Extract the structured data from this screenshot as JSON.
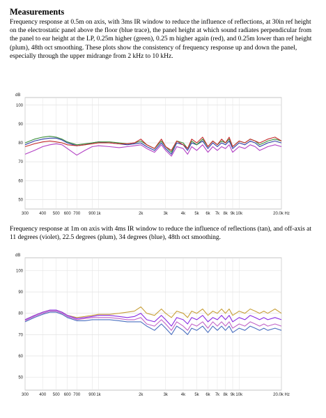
{
  "heading": "Measurements",
  "paragraph1": "Frequency response at 0.5m on axis, with 3ms IR window to reduce the influence of reflections, at 30in ref height on the electrostatic panel above the floor (blue trace), the panel height at which sound radiates perpendicular from the panel to ear height at the LP, 0.25m higher (green), 0.25 m higher again (red), and 0.25m lower than ref height (plum), 48th oct smoothing. These plots show the consistency of frequency response up and down the panel, especially through the upper midrange from 2 kHz to 10 kHz.",
  "paragraph2": "Frequency response at 1m on axis with 4ms IR window to reduce the influence of reflections (tan), and off-axis at 11 degrees (violet), 22.5 degrees (plum), 34 degrees (blue), 48th oct smoothing.",
  "chart_data": [
    {
      "type": "line",
      "ylabel": "dB",
      "yticks": [
        50,
        60,
        70,
        80,
        90,
        100
      ],
      "ylim": [
        45,
        104
      ],
      "xlim": [
        300,
        20000
      ],
      "xscale": "log",
      "xticks": [
        300,
        400,
        500,
        600,
        700,
        900,
        1000,
        2000,
        3000,
        4000,
        5000,
        6000,
        7000,
        8000,
        9000,
        10000,
        20000
      ],
      "xtick_labels": [
        "300",
        "400",
        "500",
        "600",
        "700",
        "900",
        "1k",
        "2k",
        "3k",
        "4k",
        "5k",
        "6k",
        "7k",
        "8k",
        "9k",
        "10k",
        "20.0k Hz"
      ],
      "grid": true,
      "colors": [
        "#2f3fa8",
        "#3c8f3c",
        "#c42b2b",
        "#b23fc4"
      ],
      "series": [
        {
          "x": [
            300,
            350,
            400,
            450,
            500,
            550,
            600,
            700,
            800,
            900,
            1000,
            1200,
            1400,
            1600,
            1800,
            2000,
            2200,
            2500,
            2800,
            3000,
            3300,
            3600,
            4000,
            4300,
            4600,
            5000,
            5500,
            6000,
            6500,
            7000,
            7500,
            8000,
            8500,
            9000,
            10000,
            11000,
            12000,
            13000,
            14000,
            15000,
            16000,
            18000,
            20000
          ],
          "y": [
            79,
            81,
            82,
            82.5,
            82.5,
            81.5,
            80,
            78.5,
            79,
            80,
            80.5,
            80,
            79.5,
            79,
            79.5,
            80,
            78,
            76,
            80,
            77,
            74,
            80,
            79,
            76,
            80,
            79,
            81,
            77,
            80,
            78,
            80,
            79,
            81,
            77,
            80,
            79,
            81,
            80,
            78,
            79,
            80,
            81,
            80
          ]
        },
        {
          "x": [
            300,
            350,
            400,
            450,
            500,
            550,
            600,
            700,
            800,
            900,
            1000,
            1200,
            1400,
            1600,
            1800,
            2000,
            2200,
            2500,
            2800,
            3000,
            3300,
            3600,
            4000,
            4300,
            4600,
            5000,
            5500,
            6000,
            6500,
            7000,
            7500,
            8000,
            8500,
            9000,
            10000,
            11000,
            12000,
            13000,
            14000,
            15000,
            16000,
            18000,
            20000
          ],
          "y": [
            80,
            82,
            83,
            83.5,
            83,
            82,
            80.5,
            79,
            79.5,
            80,
            80.5,
            80.5,
            80,
            79.5,
            80,
            81,
            79,
            77,
            81,
            78,
            75,
            81,
            80,
            77,
            81,
            79,
            82,
            78,
            81,
            79,
            81,
            80,
            82,
            78,
            81,
            80,
            82,
            81,
            79,
            80,
            81,
            82,
            81
          ]
        },
        {
          "x": [
            300,
            350,
            400,
            450,
            500,
            550,
            600,
            700,
            800,
            900,
            1000,
            1200,
            1400,
            1600,
            1800,
            2000,
            2200,
            2500,
            2800,
            3000,
            3300,
            3600,
            4000,
            4300,
            4600,
            5000,
            5500,
            6000,
            6500,
            7000,
            7500,
            8000,
            8500,
            9000,
            10000,
            11000,
            12000,
            13000,
            14000,
            15000,
            16000,
            18000,
            20000
          ],
          "y": [
            78,
            79.5,
            80.5,
            81,
            80.5,
            80,
            79,
            78.5,
            79,
            79.5,
            80,
            80,
            79.5,
            79.5,
            80,
            82,
            79,
            77,
            82,
            78,
            76,
            81,
            79,
            77,
            82,
            80,
            83,
            78,
            81,
            79,
            82,
            80,
            83,
            78,
            81,
            80,
            82,
            81,
            80,
            81,
            82,
            83,
            81
          ]
        },
        {
          "x": [
            300,
            350,
            400,
            450,
            500,
            550,
            600,
            700,
            800,
            900,
            1000,
            1200,
            1400,
            1600,
            1800,
            2000,
            2200,
            2500,
            2800,
            3000,
            3300,
            3600,
            4000,
            4300,
            4600,
            5000,
            5500,
            6000,
            6500,
            7000,
            7500,
            8000,
            8500,
            9000,
            10000,
            11000,
            12000,
            13000,
            14000,
            15000,
            16000,
            18000,
            20000
          ],
          "y": [
            74,
            76,
            78,
            79,
            79.5,
            79,
            77,
            73.5,
            76,
            78,
            78.5,
            78,
            77.5,
            78,
            78.5,
            79,
            77,
            75,
            79,
            76,
            73,
            78,
            77,
            74,
            78,
            76,
            79,
            75,
            78,
            76,
            78,
            77,
            79,
            75,
            78,
            77,
            79,
            78,
            76,
            77,
            78,
            79,
            78
          ]
        }
      ]
    },
    {
      "type": "line",
      "ylabel": "dB",
      "yticks": [
        50,
        60,
        70,
        80,
        90,
        100
      ],
      "ylim": [
        44,
        106
      ],
      "xlim": [
        300,
        20000
      ],
      "xscale": "log",
      "xticks": [
        300,
        400,
        500,
        600,
        700,
        900,
        1000,
        2000,
        3000,
        4000,
        5000,
        6000,
        7000,
        8000,
        9000,
        10000,
        20000
      ],
      "xtick_labels": [
        "300",
        "400",
        "500",
        "600",
        "700",
        "900",
        "1k",
        "2k",
        "3k",
        "4k",
        "5k",
        "6k",
        "7k",
        "8k",
        "9k",
        "10k",
        "20.0k Hz"
      ],
      "grid": true,
      "colors": [
        "#c8a03a",
        "#8a2be2",
        "#c064c8",
        "#4a6fc0"
      ],
      "series": [
        {
          "x": [
            300,
            350,
            400,
            450,
            500,
            550,
            600,
            700,
            800,
            900,
            1000,
            1200,
            1400,
            1600,
            1800,
            2000,
            2200,
            2500,
            2800,
            3000,
            3300,
            3600,
            4000,
            4300,
            4600,
            5000,
            5500,
            6000,
            6500,
            7000,
            7500,
            8000,
            8500,
            9000,
            10000,
            11000,
            12000,
            13000,
            14000,
            15000,
            16000,
            18000,
            20000
          ],
          "y": [
            77,
            79,
            80.5,
            81.5,
            81.5,
            80.5,
            79,
            78,
            78.5,
            79,
            79.5,
            79.5,
            80,
            80.5,
            81,
            83,
            80,
            79,
            82,
            80,
            78,
            81,
            80,
            78,
            81,
            80,
            82,
            79,
            81,
            80,
            82,
            80,
            82,
            79,
            81,
            80,
            82,
            81,
            80,
            81,
            80,
            82,
            80
          ]
        },
        {
          "x": [
            300,
            350,
            400,
            450,
            500,
            550,
            600,
            700,
            800,
            900,
            1000,
            1200,
            1400,
            1600,
            1800,
            2000,
            2200,
            2500,
            2800,
            3000,
            3300,
            3600,
            4000,
            4300,
            4600,
            5000,
            5500,
            6000,
            6500,
            7000,
            7500,
            8000,
            8500,
            9000,
            10000,
            11000,
            12000,
            13000,
            14000,
            15000,
            16000,
            18000,
            20000
          ],
          "y": [
            77,
            79,
            80.5,
            81.5,
            81.5,
            80.5,
            79,
            77.5,
            78,
            78.5,
            79,
            79,
            78.5,
            78,
            78.5,
            80,
            77,
            76,
            79,
            77,
            74,
            78,
            77,
            75,
            78,
            77,
            79,
            76,
            78,
            77,
            79,
            77,
            79,
            76,
            78,
            77,
            79,
            78,
            77,
            78,
            77,
            78,
            77
          ]
        },
        {
          "x": [
            300,
            350,
            400,
            450,
            500,
            550,
            600,
            700,
            800,
            900,
            1000,
            1200,
            1400,
            1600,
            1800,
            2000,
            2200,
            2500,
            2800,
            3000,
            3300,
            3600,
            4000,
            4300,
            4600,
            5000,
            5500,
            6000,
            6500,
            7000,
            7500,
            8000,
            8500,
            9000,
            10000,
            11000,
            12000,
            13000,
            14000,
            15000,
            16000,
            18000,
            20000
          ],
          "y": [
            76.5,
            78.5,
            80,
            81,
            81,
            80,
            78.5,
            77,
            77.5,
            78,
            78,
            78,
            77.5,
            77,
            77,
            78,
            75,
            74,
            77,
            75,
            72,
            76,
            74,
            72,
            75,
            74,
            76,
            73,
            76,
            74,
            76,
            74,
            76,
            73,
            75,
            74,
            76,
            75,
            74,
            75,
            74,
            75,
            74
          ]
        },
        {
          "x": [
            300,
            350,
            400,
            450,
            500,
            550,
            600,
            700,
            800,
            900,
            1000,
            1200,
            1400,
            1600,
            1800,
            2000,
            2200,
            2500,
            2800,
            3000,
            3300,
            3600,
            4000,
            4300,
            4600,
            5000,
            5500,
            6000,
            6500,
            7000,
            7500,
            8000,
            8500,
            9000,
            10000,
            11000,
            12000,
            13000,
            14000,
            15000,
            16000,
            18000,
            20000
          ],
          "y": [
            76,
            78,
            79.5,
            80.5,
            80.5,
            79.5,
            78,
            76.5,
            76.5,
            77,
            77,
            77,
            76.5,
            76,
            76,
            76,
            74,
            72,
            75,
            73,
            70,
            74,
            72,
            70,
            73,
            72,
            74,
            71,
            74,
            72,
            74,
            72,
            74,
            71,
            73,
            72,
            74,
            73,
            72,
            73,
            72,
            73,
            72
          ]
        }
      ]
    }
  ]
}
